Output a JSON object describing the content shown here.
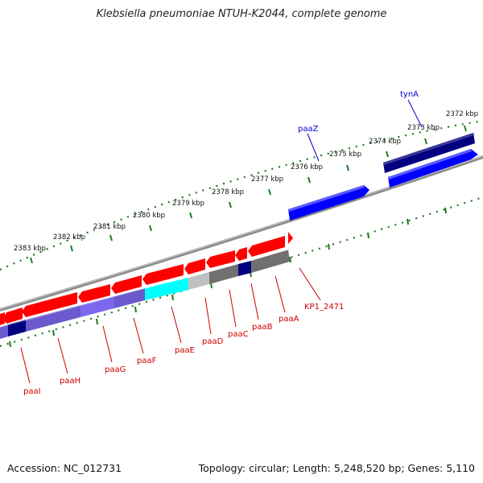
{
  "title": "Klebsiella pneumoniae NTUH-K2044, complete genome",
  "accession": "Accession: NC_012731",
  "topology": "Topology: circular; Length: 5,248,520 bp; Genes: 5,110",
  "colors": {
    "backbone": "#8a8a8a",
    "ticks": "#1f7a1f",
    "forward_gene": "#0000ff",
    "reverse_gene": "#ff0000",
    "label_forward": "#0000cc",
    "label_reverse": "#cc0000"
  },
  "ruler": {
    "unit": "kbp",
    "labels": [
      "2383 kbp",
      "2382 kbp",
      "2381 kbp",
      "2380 kbp",
      "2379 kbp",
      "2378 kbp",
      "2377 kbp",
      "2376 kbp",
      "2375 kbp",
      "2374 kbp",
      "2373 kbp",
      "2372 kbp"
    ]
  },
  "forward_genes": [
    {
      "label": "paaZ",
      "color": "#0000ff"
    },
    {
      "label": "tynA",
      "color": "#000080"
    }
  ],
  "reverse_genes": [
    {
      "label": "paaI"
    },
    {
      "label": "paaH"
    },
    {
      "label": "paaG"
    },
    {
      "label": "paaF"
    },
    {
      "label": "paaE"
    },
    {
      "label": "paaD"
    },
    {
      "label": "paaC"
    },
    {
      "label": "paaB"
    },
    {
      "label": "paaA"
    },
    {
      "label": "KP1_2471"
    }
  ]
}
